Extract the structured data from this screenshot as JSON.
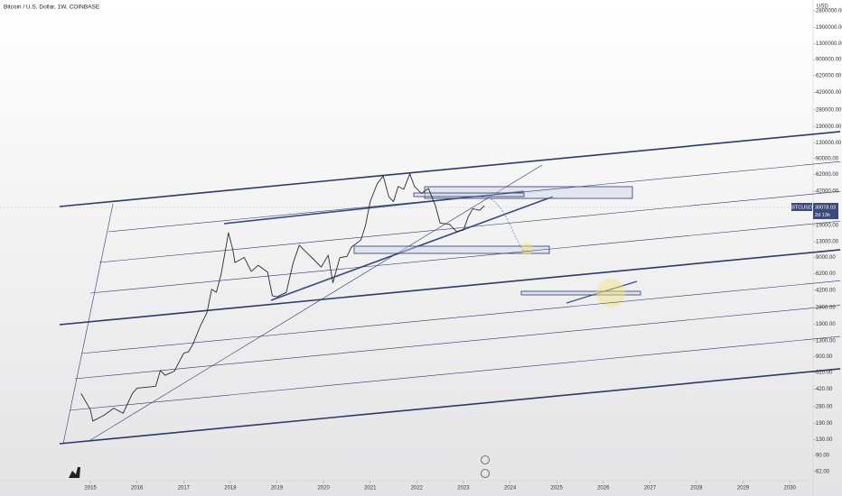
{
  "chart_data": {
    "type": "line",
    "title": "Bitcoin / U.S. Dollar, 1W, COINBASE",
    "currency": "USD",
    "symbol": "BTCUSD",
    "last_price": "30078.03",
    "countdown": "2d 13h",
    "log_scale": true,
    "grid": false,
    "xlim": [
      2013.06,
      2030.5
    ],
    "ylim": [
      50,
      3600000
    ],
    "xticks": [
      2015,
      2016,
      2017,
      2018,
      2019,
      2020,
      2021,
      2022,
      2023,
      2024,
      2025,
      2026,
      2027,
      2028,
      2029,
      2030
    ],
    "yticks": [
      {
        "value": 62,
        "label": "62.00"
      },
      {
        "value": 90,
        "label": "90.00"
      },
      {
        "value": 130,
        "label": "130.00"
      },
      {
        "value": 190,
        "label": "190.00"
      },
      {
        "value": 280,
        "label": "280.00"
      },
      {
        "value": 420,
        "label": "420.00"
      },
      {
        "value": 620,
        "label": "620.00"
      },
      {
        "value": 900,
        "label": "900.00"
      },
      {
        "value": 1300,
        "label": "1300.00"
      },
      {
        "value": 1900,
        "label": "1900.00"
      },
      {
        "value": 2800,
        "label": "2800.00"
      },
      {
        "value": 4200,
        "label": "4200.00"
      },
      {
        "value": 6200,
        "label": "6200.00"
      },
      {
        "value": 9000,
        "label": "9000.00"
      },
      {
        "value": 13000,
        "label": "13000.00"
      },
      {
        "value": 19000,
        "label": "19000.00"
      },
      {
        "value": 42000,
        "label": "42000.00"
      },
      {
        "value": 62000,
        "label": "62000.00"
      },
      {
        "value": 90000,
        "label": "90000.00"
      },
      {
        "value": 130000,
        "label": "130000.00"
      },
      {
        "value": 190000,
        "label": "190000.00"
      },
      {
        "value": 280000,
        "label": "280000.00"
      },
      {
        "value": 420000,
        "label": "420000.00"
      },
      {
        "value": 620000,
        "label": "620000.00"
      },
      {
        "value": 900000,
        "label": "900000.00"
      },
      {
        "value": 1300000,
        "label": "1300000.00"
      },
      {
        "value": 1900000,
        "label": "1900000.00"
      },
      {
        "value": 2800000,
        "label": "2800000.00"
      }
    ],
    "series": [
      {
        "name": "BTCUSD",
        "color": "#2b2b2b",
        "x": [
          2014.8,
          2015.0,
          2015.05,
          2015.3,
          2015.5,
          2015.7,
          2015.9,
          2016.0,
          2016.4,
          2016.5,
          2016.6,
          2016.8,
          2017.0,
          2017.1,
          2017.2,
          2017.35,
          2017.5,
          2017.6,
          2017.7,
          2017.8,
          2017.9,
          2017.96,
          2018.05,
          2018.1,
          2018.3,
          2018.45,
          2018.6,
          2018.8,
          2018.9,
          2019.0,
          2019.2,
          2019.35,
          2019.48,
          2019.6,
          2019.8,
          2019.95,
          2020.1,
          2020.2,
          2020.35,
          2020.5,
          2020.6,
          2020.8,
          2020.9,
          2021.0,
          2021.15,
          2021.28,
          2021.4,
          2021.5,
          2021.6,
          2021.72,
          2021.85,
          2021.95,
          2022.1,
          2022.25,
          2022.4,
          2022.5,
          2022.7,
          2022.85,
          2023.0,
          2023.1,
          2023.2,
          2023.35,
          2023.45
        ],
        "values": [
          380,
          260,
          200,
          230,
          270,
          240,
          380,
          430,
          450,
          650,
          580,
          640,
          970,
          1000,
          1200,
          1800,
          2500,
          4300,
          4000,
          6000,
          11000,
          16000,
          11000,
          8000,
          9000,
          6500,
          7500,
          6400,
          3700,
          3600,
          4000,
          8000,
          12000,
          10500,
          8500,
          7200,
          9500,
          5000,
          9000,
          9200,
          11500,
          13500,
          19000,
          33000,
          50000,
          60000,
          37000,
          33000,
          47000,
          44000,
          63000,
          47000,
          40000,
          45000,
          30000,
          20000,
          19500,
          16500,
          17000,
          23000,
          28000,
          27000,
          30078.03
        ]
      }
    ]
  }
}
